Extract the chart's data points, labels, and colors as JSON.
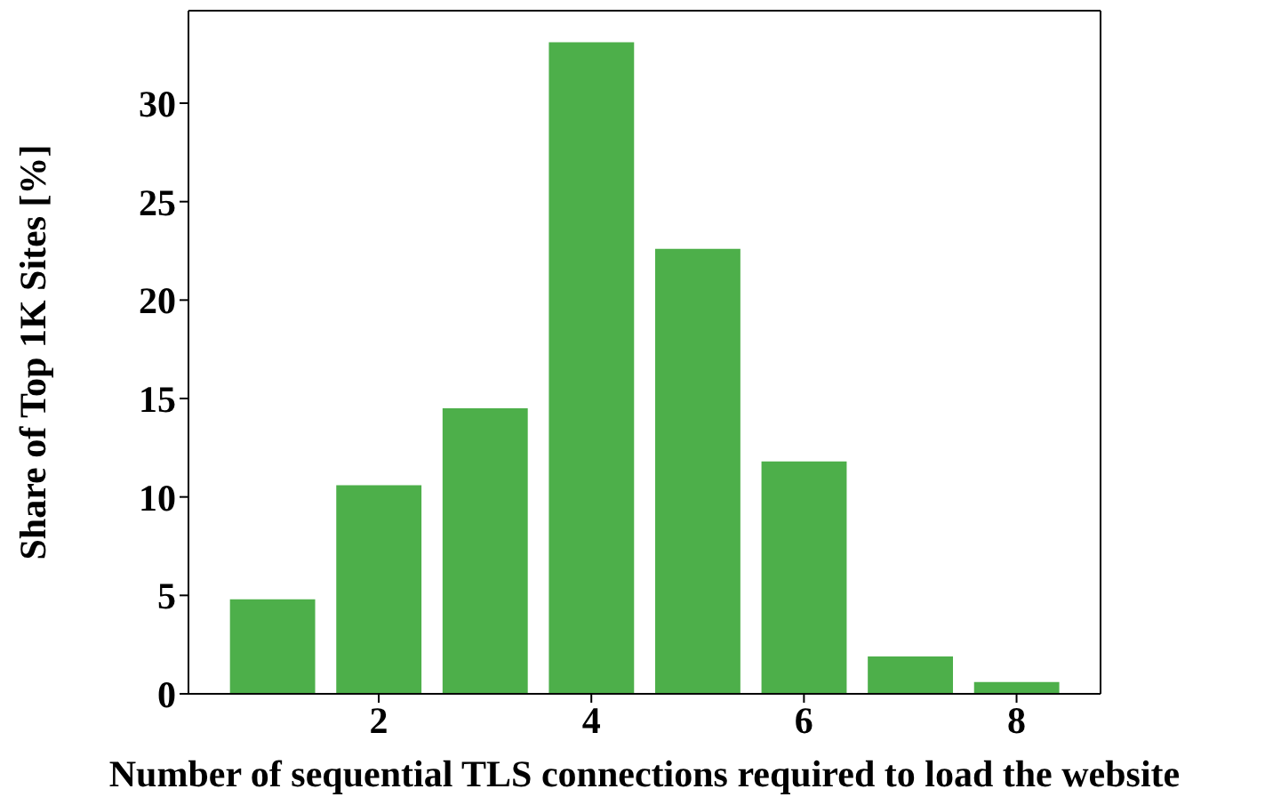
{
  "chart_data": {
    "type": "bar",
    "xlabel": "Number of sequential TLS connections required to load the website",
    "ylabel": "Share of Top 1K Sites [%]",
    "x": [
      1,
      2,
      3,
      4,
      5,
      6,
      7,
      8
    ],
    "values": [
      4.8,
      10.6,
      14.5,
      33.1,
      22.6,
      11.8,
      1.9,
      0.6
    ],
    "color": "#4daf4a",
    "xlim": [
      0.21,
      8.79
    ],
    "xticks": [
      2,
      4,
      6,
      8
    ],
    "ylim": [
      0,
      34.7
    ],
    "yticks": [
      0,
      5,
      10,
      15,
      20,
      25,
      30
    ],
    "grid": false
  }
}
